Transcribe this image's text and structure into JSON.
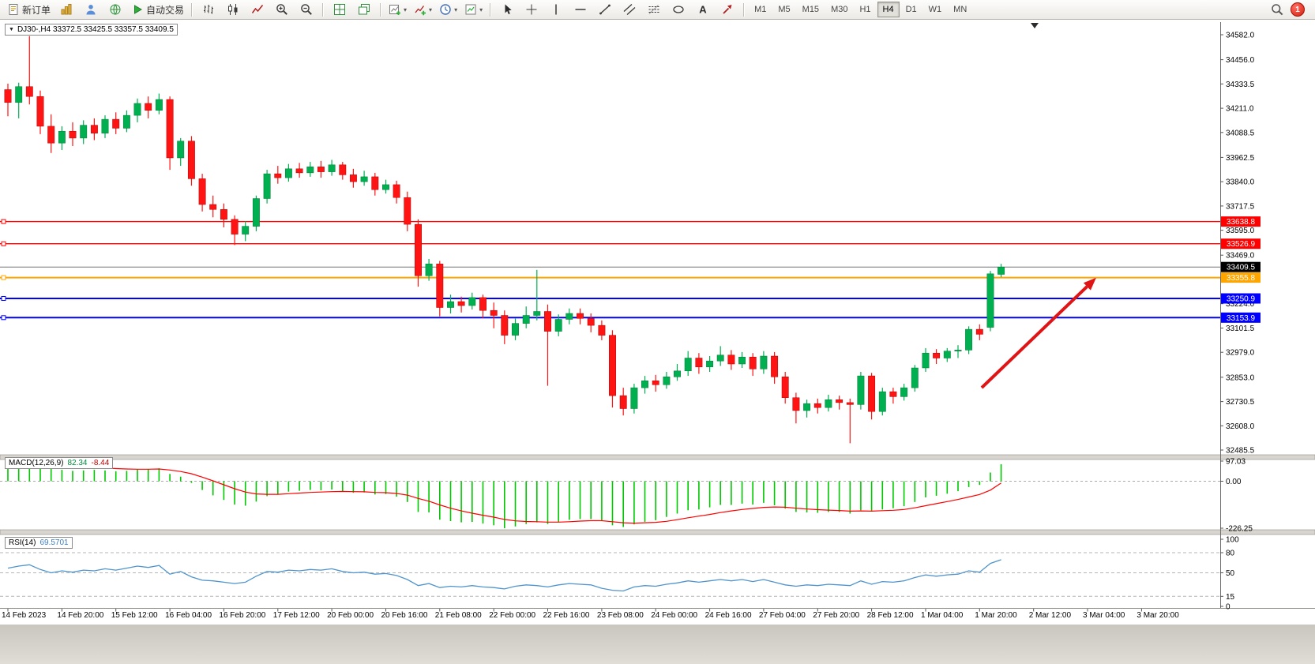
{
  "toolbar": {
    "groups": [
      [
        {
          "name": "new-order-button",
          "icon": "new-order-icon",
          "label": "新订单"
        },
        {
          "name": "charts-button",
          "icon": "charts-icon"
        },
        {
          "name": "profile-button",
          "icon": "profile-icon"
        },
        {
          "name": "community-button",
          "icon": "community-icon"
        },
        {
          "name": "autotrading-button",
          "icon": "autotrading-icon",
          "label": "自动交易"
        }
      ],
      [
        {
          "name": "bar-chart-button",
          "icon": "bar-chart-icon"
        },
        {
          "name": "candlestick-chart-button",
          "icon": "candlestick-icon"
        },
        {
          "name": "line-chart-button",
          "icon": "line-chart-icon"
        },
        {
          "name": "zoom-in-button",
          "icon": "zoom-in-icon"
        },
        {
          "name": "zoom-out-button",
          "icon": "zoom-out-icon"
        }
      ],
      [
        {
          "name": "tile-windows-button",
          "icon": "tile-windows-icon"
        },
        {
          "name": "cascade-windows-button",
          "icon": "cascade-windows-icon"
        }
      ],
      [
        {
          "name": "new-chart-button",
          "icon": "new-chart-icon",
          "caret": true
        },
        {
          "name": "indicators-button",
          "icon": "indicators-icon",
          "caret": true
        },
        {
          "name": "periods-button",
          "icon": "period-icon",
          "caret": true
        },
        {
          "name": "templates-button",
          "icon": "template-icon",
          "caret": true
        }
      ],
      [
        {
          "name": "cursor-button",
          "icon": "cursor-icon"
        },
        {
          "name": "crosshair-button",
          "icon": "crosshair-icon"
        },
        {
          "name": "vertical-line-button",
          "icon": "vertical-line-icon"
        },
        {
          "name": "horizontal-line-button",
          "icon": "horizontal-line-icon"
        },
        {
          "name": "trendline-button",
          "icon": "trendline-icon"
        },
        {
          "name": "channel-button",
          "icon": "channel-icon"
        },
        {
          "name": "fibonacci-button",
          "icon": "fibonacci-icon"
        },
        {
          "name": "shapes-button",
          "icon": "ellipse-icon"
        },
        {
          "name": "text-button",
          "icon": "text-icon"
        },
        {
          "name": "arrow-tool-button",
          "icon": "arrows-icon"
        }
      ]
    ],
    "timeframes": {
      "options": [
        "M1",
        "M5",
        "M15",
        "M30",
        "H1",
        "H4",
        "D1",
        "W1",
        "MN"
      ],
      "active": "H4"
    },
    "notifications": {
      "count": "1"
    }
  },
  "chart": {
    "title": "DJ30-,H4 33372.5 33425.5 33357.5 33409.5",
    "symbol": "DJ30-",
    "period": "H4",
    "ohlc": {
      "open": "33372.5",
      "high": "33425.5",
      "low": "33357.5",
      "close": "33409.5"
    }
  },
  "chart_data": [
    {
      "type": "candlestick",
      "title": "DJ30-,H4",
      "y_range": [
        32461.7,
        34645.6
      ],
      "y_axis_ticks": [
        34582.0,
        34456.0,
        34333.5,
        34211.0,
        34088.5,
        33962.5,
        33840.0,
        33717.5,
        33595.0,
        33469.0,
        33347.0,
        33224.0,
        33101.5,
        32979.0,
        32853.0,
        32730.5,
        32608.0,
        32485.5
      ],
      "x_axis_labels": [
        "14 Feb 2023",
        "14 Feb 20:00",
        "15 Feb 12:00",
        "16 Feb 04:00",
        "16 Feb 20:00",
        "17 Feb 12:00",
        "20 Feb 00:00",
        "20 Feb 16:00",
        "21 Feb 08:00",
        "22 Feb 00:00",
        "22 Feb 16:00",
        "23 Feb 08:00",
        "24 Feb 00:00",
        "24 Feb 16:00",
        "27 Feb 04:00",
        "27 Feb 20:00",
        "28 Feb 12:00",
        "1 Mar 04:00",
        "1 Mar 20:00",
        "2 Mar 12:00",
        "3 Mar 04:00",
        "3 Mar 20:00"
      ],
      "bars_per_label": 5,
      "candles": [
        [
          34305,
          34335,
          34170,
          34240
        ],
        [
          34240,
          34340,
          34160,
          34320
        ],
        [
          34320,
          34575,
          34230,
          34270
        ],
        [
          34270,
          34300,
          34080,
          34120
        ],
        [
          34120,
          34180,
          33985,
          34035
        ],
        [
          34035,
          34120,
          34000,
          34095
        ],
        [
          34095,
          34140,
          34020,
          34060
        ],
        [
          34060,
          34150,
          34030,
          34125
        ],
        [
          34125,
          34160,
          34050,
          34085
        ],
        [
          34085,
          34175,
          34060,
          34155
        ],
        [
          34155,
          34190,
          34080,
          34110
        ],
        [
          34110,
          34200,
          34090,
          34175
        ],
        [
          34175,
          34260,
          34140,
          34235
        ],
        [
          34235,
          34270,
          34160,
          34200
        ],
        [
          34200,
          34285,
          34180,
          34255
        ],
        [
          34255,
          34270,
          33900,
          33960
        ],
        [
          33960,
          34060,
          33920,
          34045
        ],
        [
          34045,
          34070,
          33820,
          33855
        ],
        [
          33855,
          33880,
          33690,
          33725
        ],
        [
          33725,
          33770,
          33660,
          33700
        ],
        [
          33700,
          33730,
          33610,
          33650
        ],
        [
          33650,
          33670,
          33520,
          33575
        ],
        [
          33575,
          33640,
          33540,
          33615
        ],
        [
          33615,
          33770,
          33590,
          33755
        ],
        [
          33755,
          33900,
          33730,
          33880
        ],
        [
          33880,
          33920,
          33830,
          33860
        ],
        [
          33860,
          33930,
          33840,
          33905
        ],
        [
          33905,
          33935,
          33860,
          33885
        ],
        [
          33885,
          33940,
          33865,
          33915
        ],
        [
          33915,
          33945,
          33860,
          33890
        ],
        [
          33890,
          33950,
          33870,
          33925
        ],
        [
          33925,
          33940,
          33850,
          33875
        ],
        [
          33875,
          33905,
          33810,
          33840
        ],
        [
          33840,
          33895,
          33820,
          33865
        ],
        [
          33865,
          33885,
          33770,
          33800
        ],
        [
          33800,
          33850,
          33780,
          33825
        ],
        [
          33825,
          33845,
          33730,
          33760
        ],
        [
          33760,
          33790,
          33590,
          33625
        ],
        [
          33625,
          33650,
          33310,
          33365
        ],
        [
          33365,
          33450,
          33340,
          33425
        ],
        [
          33425,
          33440,
          33160,
          33205
        ],
        [
          33205,
          33270,
          33175,
          33235
        ],
        [
          33235,
          33260,
          33180,
          33215
        ],
        [
          33215,
          33280,
          33195,
          33255
        ],
        [
          33255,
          33270,
          33150,
          33190
        ],
        [
          33190,
          33230,
          33100,
          33165
        ],
        [
          33165,
          33190,
          33020,
          33065
        ],
        [
          33065,
          33150,
          33040,
          33125
        ],
        [
          33125,
          33210,
          33100,
          33165
        ],
        [
          33165,
          33395,
          33140,
          33185
        ],
        [
          33185,
          33220,
          32810,
          33085
        ],
        [
          33085,
          33170,
          33060,
          33145
        ],
        [
          33145,
          33200,
          33120,
          33175
        ],
        [
          33175,
          33200,
          33120,
          33150
        ],
        [
          33150,
          33175,
          33080,
          33115
        ],
        [
          33115,
          33140,
          33040,
          33065
        ],
        [
          33065,
          33090,
          32700,
          32760
        ],
        [
          32760,
          32800,
          32660,
          32695
        ],
        [
          32695,
          32820,
          32670,
          32800
        ],
        [
          32800,
          32860,
          32770,
          32835
        ],
        [
          32835,
          32865,
          32780,
          32815
        ],
        [
          32815,
          32880,
          32795,
          32855
        ],
        [
          32855,
          32920,
          32835,
          32885
        ],
        [
          32885,
          32985,
          32860,
          32950
        ],
        [
          32950,
          32975,
          32870,
          32905
        ],
        [
          32905,
          32960,
          32880,
          32935
        ],
        [
          32935,
          33010,
          32910,
          32965
        ],
        [
          32965,
          32990,
          32890,
          32920
        ],
        [
          32920,
          32980,
          32900,
          32955
        ],
        [
          32955,
          32975,
          32860,
          32895
        ],
        [
          32895,
          32985,
          32870,
          32960
        ],
        [
          32960,
          32980,
          32820,
          32855
        ],
        [
          32855,
          32880,
          32720,
          32750
        ],
        [
          32750,
          32775,
          32620,
          32685
        ],
        [
          32685,
          32740,
          32650,
          32720
        ],
        [
          32720,
          32745,
          32670,
          32700
        ],
        [
          32700,
          32765,
          32680,
          32740
        ],
        [
          32740,
          32760,
          32690,
          32725
        ],
        [
          32725,
          32745,
          32520,
          32715
        ],
        [
          32715,
          32880,
          32690,
          32860
        ],
        [
          32860,
          32875,
          32640,
          32680
        ],
        [
          32680,
          32800,
          32660,
          32780
        ],
        [
          32780,
          32800,
          32720,
          32755
        ],
        [
          32755,
          32820,
          32735,
          32800
        ],
        [
          32800,
          32915,
          32780,
          32900
        ],
        [
          32900,
          33000,
          32880,
          32975
        ],
        [
          32975,
          32995,
          32920,
          32950
        ],
        [
          32950,
          33000,
          32930,
          32985
        ],
        [
          32985,
          33015,
          32950,
          32990
        ],
        [
          32990,
          33110,
          32970,
          33095
        ],
        [
          33095,
          33120,
          33040,
          33070
        ],
        [
          33105,
          33390,
          33085,
          33375
        ],
        [
          33372.5,
          33425.5,
          33357.5,
          33409.5
        ]
      ],
      "horizontal_lines": [
        {
          "price": 33638.8,
          "label": "33638.8",
          "color": "#ff0000",
          "width": 1.4
        },
        {
          "price": 33526.9,
          "label": "33526.9",
          "color": "#ff0000",
          "width": 1.4
        },
        {
          "price": 33355.8,
          "label": "33355.8",
          "color": "#ffa500",
          "width": 2
        },
        {
          "price": 33250.9,
          "label": "33250.9",
          "color": "#0000ff",
          "width": 2
        },
        {
          "price": 33153.9,
          "label": "33153.9",
          "color": "#0000ff",
          "width": 2
        }
      ],
      "current_price": {
        "value": 33409.5,
        "label": "33409.5",
        "color": "#000000"
      },
      "annotations": [
        {
          "type": "arrow",
          "color": "#e01414",
          "from": {
            "bar": 90.2,
            "price": 32800
          },
          "to": {
            "bar": 100.8,
            "price": 33355
          }
        }
      ],
      "colors": {
        "up": "#00b050",
        "down": "#ff1414",
        "background": "#ffffff"
      }
    },
    {
      "type": "macd",
      "label": "MACD(12,26,9)",
      "value_main": "82.34",
      "value_signal": "-8.44",
      "y_range": [
        -226.25,
        97.03
      ],
      "axis_ticks": [
        {
          "v": 97.03,
          "t": "97.03"
        },
        {
          "v": 0,
          "t": "0.00"
        },
        {
          "v": -226.25,
          "t": "-226.25"
        }
      ],
      "histogram": [
        88,
        92,
        97.03,
        80,
        62,
        55,
        50,
        52,
        55,
        52,
        48,
        50,
        56,
        58,
        62,
        35,
        22,
        -8,
        -42,
        -68,
        -90,
        -112,
        -118,
        -98,
        -72,
        -62,
        -50,
        -46,
        -42,
        -44,
        -40,
        -48,
        -56,
        -54,
        -64,
        -62,
        -74,
        -100,
        -148,
        -150,
        -185,
        -192,
        -198,
        -196,
        -204,
        -212,
        -226.25,
        -218,
        -206,
        -198,
        -206,
        -196,
        -186,
        -182,
        -182,
        -192,
        -212,
        -220,
        -208,
        -196,
        -188,
        -172,
        -156,
        -140,
        -136,
        -126,
        -114,
        -114,
        -108,
        -112,
        -104,
        -116,
        -132,
        -148,
        -150,
        -152,
        -148,
        -148,
        -156,
        -140,
        -146,
        -136,
        -130,
        -120,
        -100,
        -78,
        -70,
        -60,
        -48,
        -28,
        -18,
        42,
        82.34
      ],
      "signal": [
        80,
        84,
        88,
        88,
        84,
        79,
        74,
        70,
        67,
        64,
        61,
        59,
        58,
        58,
        59,
        54,
        47,
        36,
        20,
        2,
        -17,
        -36,
        -52,
        -61,
        -63,
        -63,
        -60,
        -57,
        -54,
        -52,
        -50,
        -49,
        -50,
        -51,
        -54,
        -55,
        -59,
        -67,
        -83,
        -96,
        -114,
        -130,
        -143,
        -154,
        -164,
        -173,
        -184,
        -191,
        -194,
        -195,
        -197,
        -197,
        -195,
        -192,
        -190,
        -190,
        -195,
        -200,
        -202,
        -200,
        -198,
        -193,
        -185,
        -176,
        -168,
        -160,
        -151,
        -143,
        -136,
        -131,
        -126,
        -124,
        -125,
        -130,
        -134,
        -137,
        -139,
        -141,
        -144,
        -143,
        -144,
        -142,
        -140,
        -136,
        -128,
        -118,
        -108,
        -98,
        -88,
        -76,
        -64,
        -43,
        -8.44
      ],
      "colors": {
        "histogram": "#00c800",
        "signal": "#ff0000"
      }
    },
    {
      "type": "rsi",
      "label": "RSI(14)",
      "value": "69.5701",
      "y_range": [
        0,
        100
      ],
      "levels": [
        80,
        50,
        15
      ],
      "axis_ticks": [
        {
          "v": 100,
          "t": "100"
        },
        {
          "v": 80,
          "t": "80"
        },
        {
          "v": 50,
          "t": "50"
        },
        {
          "v": 15,
          "t": "15"
        },
        {
          "v": 0,
          "t": "0"
        }
      ],
      "series": [
        57,
        60,
        62,
        55,
        50,
        53,
        51,
        54,
        53,
        56,
        54,
        57,
        60,
        58,
        61,
        48,
        52,
        44,
        39,
        38,
        36,
        34,
        36,
        45,
        52,
        51,
        54,
        53,
        55,
        54,
        56,
        52,
        50,
        51,
        48,
        49,
        46,
        40,
        31,
        34,
        28,
        30,
        29,
        31,
        29,
        28,
        26,
        30,
        32,
        31,
        29,
        32,
        34,
        33,
        32,
        27,
        24,
        23,
        29,
        31,
        30,
        33,
        35,
        38,
        36,
        38,
        40,
        38,
        40,
        37,
        40,
        36,
        32,
        30,
        32,
        31,
        33,
        32,
        31,
        38,
        33,
        37,
        36,
        38,
        43,
        47,
        45,
        47,
        48,
        53,
        51,
        64,
        69.57
      ],
      "color": "#4f94cd"
    }
  ]
}
